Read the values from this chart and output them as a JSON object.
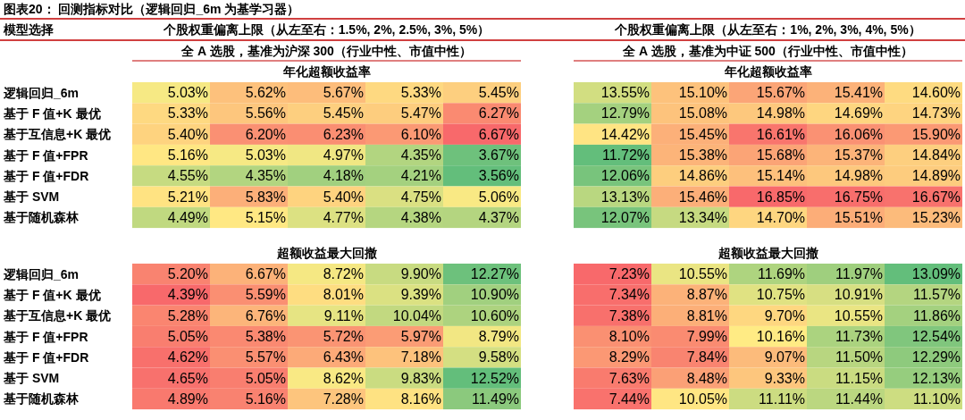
{
  "chart_data": [
    {
      "type": "heatmap",
      "title": "图表20： 回测指标对比（逻辑回归_6m 为基学习器）",
      "annotations": [
        "模型选择",
        "个股权重偏离上限（从左至右：1.5%, 2%, 2.5%, 3%, 5%）",
        "个股权重偏离上限（从左至右：1%, 2%, 3%, 4%, 5%）",
        "全 A 选股，基准为沪深 300（行业中性、市值中性）",
        "全 A 选股，基准为中证 500（行业中性、市值中性）",
        "年化超额收益率",
        "年化超额收益率"
      ],
      "tick_labels": "y",
      "colors": [
        "#63be7b",
        "#ffeb84",
        "#f8696b"
      ],
      "categories": [
        null,
        null,
        null,
        null,
        null,
        null,
        null,
        null,
        null,
        null,
        null
      ],
      "y_categories": [
        "逻辑回归_6m",
        "基于 F 值+K 最优",
        "基于互信息+K 最优",
        "基于 F 值+FPR",
        "基于 F 值+FDR",
        "基于 SVM",
        "基于随机森林"
      ],
      "cells": [
        [
          5.03,
          5.62,
          5.67,
          5.33,
          5.45,
          null,
          13.55,
          15.1,
          15.67,
          15.41,
          14.6
        ],
        [
          5.33,
          5.56,
          5.45,
          5.47,
          6.27,
          null,
          12.79,
          15.08,
          14.98,
          14.69,
          14.73
        ],
        [
          5.4,
          6.2,
          6.23,
          6.1,
          6.67,
          null,
          14.42,
          15.45,
          16.61,
          16.06,
          15.9
        ],
        [
          5.16,
          5.03,
          4.97,
          4.35,
          3.67,
          null,
          11.72,
          15.38,
          15.68,
          15.37,
          14.84
        ],
        [
          4.55,
          4.35,
          4.18,
          4.21,
          3.56,
          null,
          12.06,
          14.86,
          15.14,
          14.98,
          14.89
        ],
        [
          5.21,
          5.83,
          5.4,
          4.75,
          5.06,
          null,
          13.13,
          15.46,
          16.85,
          16.75,
          16.67
        ],
        [
          4.49,
          5.15,
          4.77,
          4.38,
          4.37,
          null,
          12.07,
          13.34,
          14.7,
          15.51,
          15.23
        ]
      ],
      "cell_labels": [
        [
          "5.03%",
          "5.62%",
          "5.67%",
          "5.33%",
          "5.45%",
          null,
          "13.55%",
          "15.10%",
          "15.67%",
          "15.41%",
          "14.60%"
        ],
        [
          "5.33%",
          "5.56%",
          "5.45%",
          "5.47%",
          "6.27%",
          null,
          "12.79%",
          "15.08%",
          "14.98%",
          "14.69%",
          "14.73%"
        ],
        [
          "5.40%",
          "6.20%",
          "6.23%",
          "6.10%",
          "6.67%",
          null,
          "14.42%",
          "15.45%",
          "16.61%",
          "16.06%",
          "15.90%"
        ],
        [
          "5.16%",
          "5.03%",
          "4.97%",
          "4.35%",
          "3.67%",
          null,
          "11.72%",
          "15.38%",
          "15.68%",
          "15.37%",
          "14.84%"
        ],
        [
          "4.55%",
          "4.35%",
          "4.18%",
          "4.21%",
          "3.56%",
          null,
          "12.06%",
          "14.86%",
          "15.14%",
          "14.98%",
          "14.89%"
        ],
        [
          "5.21%",
          "5.83%",
          "5.40%",
          "4.75%",
          "5.06%",
          null,
          "13.13%",
          "15.46%",
          "16.85%",
          "16.75%",
          "16.67%"
        ],
        [
          "4.49%",
          "5.15%",
          "4.77%",
          "4.38%",
          "4.37%",
          null,
          "12.07%",
          "13.34%",
          "14.70%",
          "15.51%",
          "15.23%"
        ]
      ]
    },
    {
      "type": "heatmap",
      "annotations": [
        "超额收益最大回撤",
        "超额收益最大回撤"
      ],
      "tick_labels": "y",
      "colors": [
        "#f8696b",
        "#ffeb84",
        "#63be7b"
      ],
      "categories": [
        null,
        null,
        null,
        null,
        null,
        null,
        null,
        null,
        null,
        null,
        null
      ],
      "y_categories": [
        "逻辑回归_6m",
        "基于 F 值+K 最优",
        "基于互信息+K 最优",
        "基于 F 值+FPR",
        "基于 F 值+FDR",
        "基于 SVM",
        "基于随机森林"
      ],
      "cells": [
        [
          5.2,
          6.67,
          8.72,
          9.9,
          12.27,
          null,
          7.23,
          10.55,
          11.69,
          11.97,
          13.09
        ],
        [
          4.39,
          5.59,
          8.01,
          9.39,
          10.9,
          null,
          7.34,
          8.87,
          10.75,
          10.91,
          11.57
        ],
        [
          5.28,
          6.76,
          9.11,
          10.04,
          10.6,
          null,
          7.38,
          8.81,
          9.7,
          10.55,
          11.86
        ],
        [
          5.05,
          5.38,
          5.72,
          5.97,
          8.79,
          null,
          8.1,
          7.99,
          10.16,
          11.73,
          12.54
        ],
        [
          4.62,
          5.57,
          6.43,
          7.18,
          9.58,
          null,
          8.29,
          7.84,
          9.07,
          11.5,
          12.29
        ],
        [
          4.65,
          5.05,
          8.62,
          9.83,
          12.52,
          null,
          7.63,
          8.48,
          9.33,
          11.15,
          12.13
        ],
        [
          4.89,
          5.16,
          7.28,
          8.16,
          11.49,
          null,
          7.44,
          10.05,
          11.11,
          11.44,
          11.1
        ]
      ],
      "cell_labels": [
        [
          "5.20%",
          "6.67%",
          "8.72%",
          "9.90%",
          "12.27%",
          null,
          "7.23%",
          "10.55%",
          "11.69%",
          "11.97%",
          "13.09%"
        ],
        [
          "4.39%",
          "5.59%",
          "8.01%",
          "9.39%",
          "10.90%",
          null,
          "7.34%",
          "8.87%",
          "10.75%",
          "10.91%",
          "11.57%"
        ],
        [
          "5.28%",
          "6.76%",
          "9.11%",
          "10.04%",
          "10.60%",
          null,
          "7.38%",
          "8.81%",
          "9.70%",
          "10.55%",
          "11.86%"
        ],
        [
          "5.05%",
          "5.38%",
          "5.72%",
          "5.97%",
          "8.79%",
          null,
          "8.10%",
          "7.99%",
          "10.16%",
          "11.73%",
          "12.54%"
        ],
        [
          "4.62%",
          "5.57%",
          "6.43%",
          "7.18%",
          "9.58%",
          null,
          "8.29%",
          "7.84%",
          "9.07%",
          "11.50%",
          "12.29%"
        ],
        [
          "4.65%",
          "5.05%",
          "8.62%",
          "9.83%",
          "12.52%",
          null,
          "7.63%",
          "8.48%",
          "9.33%",
          "11.15%",
          "12.13%"
        ],
        [
          "4.89%",
          "5.16%",
          "7.28%",
          "8.16%",
          "11.49%",
          null,
          "7.44%",
          "10.05%",
          "11.11%",
          "11.44%",
          "11.10%"
        ]
      ]
    }
  ]
}
